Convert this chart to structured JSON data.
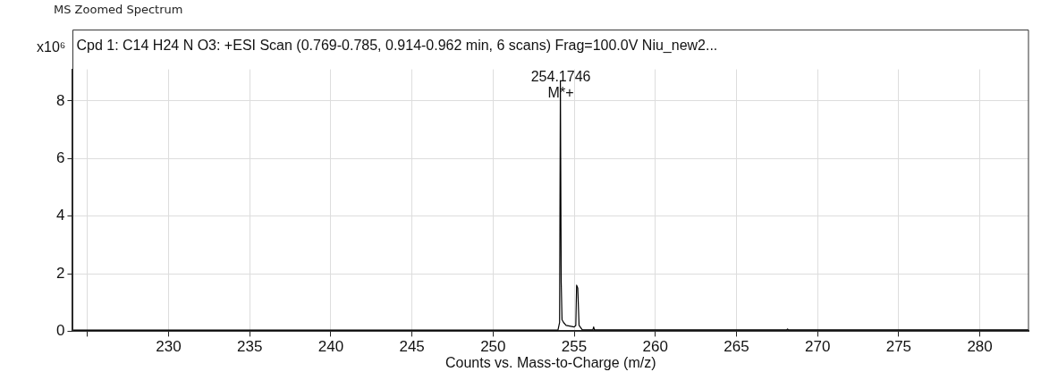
{
  "chart_data": {
    "type": "line",
    "title": "MS Zoomed Spectrum",
    "subtitle": "Cpd 1: C14 H24 N O3: +ESI Scan (0.769-0.785, 0.914-0.962 min, 6 scans) Frag=100.0V Niu_new2...",
    "xlabel": "Counts vs. Mass-to-Charge (m/z)",
    "ylabel": "x10⁶",
    "x": [
      224.1,
      254.0,
      254.1,
      254.15,
      254.2,
      254.25,
      254.35,
      254.5,
      255.0,
      255.1,
      255.15,
      255.22,
      255.3,
      255.5,
      256.15,
      256.2,
      256.25,
      268.1,
      268.15,
      268.2,
      283
    ],
    "series": [
      {
        "color": "#000000",
        "values": [
          0.04,
          0.04,
          0.3,
          8.7,
          1.7,
          0.4,
          0.3,
          0.2,
          0.15,
          0.2,
          1.6,
          1.5,
          0.2,
          0.05,
          0.05,
          0.15,
          0.05,
          0.05,
          0.08,
          0.05,
          0.05
        ]
      }
    ],
    "annotations": [
      {
        "text": "254.1746",
        "x": 254.1746,
        "y": 8.7
      },
      {
        "text": "M*+",
        "x": 254.1746,
        "y": 8.7
      }
    ],
    "xlim": [
      224.1,
      283
    ],
    "xticks": [
      {
        "value": 225,
        "label": null
      },
      230,
      235,
      240,
      245,
      250,
      255,
      260,
      265,
      270,
      275,
      280
    ],
    "ylim": [
      0,
      9.1
    ],
    "yticks": [
      0,
      2,
      4,
      6,
      8
    ],
    "grid": true,
    "marker": "none",
    "line_style": "solid",
    "legend": false
  }
}
